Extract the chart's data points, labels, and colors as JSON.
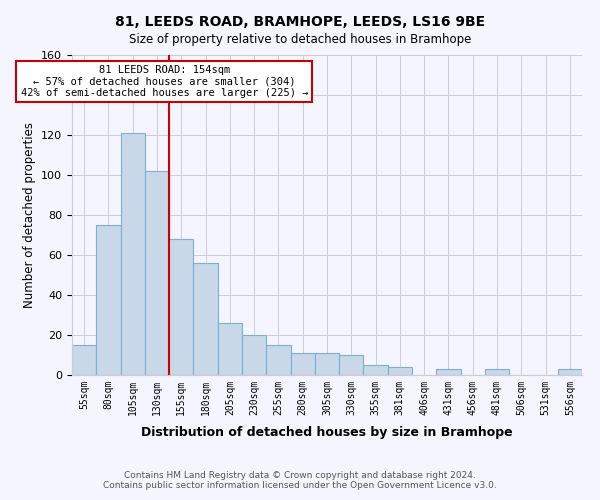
{
  "title": "81, LEEDS ROAD, BRAMHOPE, LEEDS, LS16 9BE",
  "subtitle": "Size of property relative to detached houses in Bramhope",
  "xlabel": "Distribution of detached houses by size in Bramhope",
  "ylabel": "Number of detached properties",
  "footer_line1": "Contains HM Land Registry data © Crown copyright and database right 2024.",
  "footer_line2": "Contains public sector information licensed under the Open Government Licence v3.0.",
  "bin_labels": [
    "55sqm",
    "80sqm",
    "105sqm",
    "130sqm",
    "155sqm",
    "180sqm",
    "205sqm",
    "230sqm",
    "255sqm",
    "280sqm",
    "305sqm",
    "330sqm",
    "355sqm",
    "381sqm",
    "406sqm",
    "431sqm",
    "456sqm",
    "481sqm",
    "506sqm",
    "531sqm",
    "556sqm"
  ],
  "bin_values": [
    15,
    75,
    121,
    102,
    68,
    56,
    26,
    20,
    15,
    11,
    11,
    10,
    5,
    4,
    0,
    3,
    0,
    3,
    0,
    0,
    3
  ],
  "ylim": [
    0,
    160
  ],
  "yticks": [
    0,
    20,
    40,
    60,
    80,
    100,
    120,
    140,
    160
  ],
  "bar_color": "#c8d8e8",
  "bar_edge_color": "#7ab0d4",
  "annotation_line_color": "#cc0000",
  "annotation_text_line1": "81 LEEDS ROAD: 154sqm",
  "annotation_text_line2": "← 57% of detached houses are smaller (304)",
  "annotation_text_line3": "42% of semi-detached houses are larger (225) →",
  "annotation_box_color": "#ffffff",
  "annotation_box_edge_color": "#cc0000",
  "bg_color": "#f5f5ff",
  "grid_color": "#ccccdd"
}
